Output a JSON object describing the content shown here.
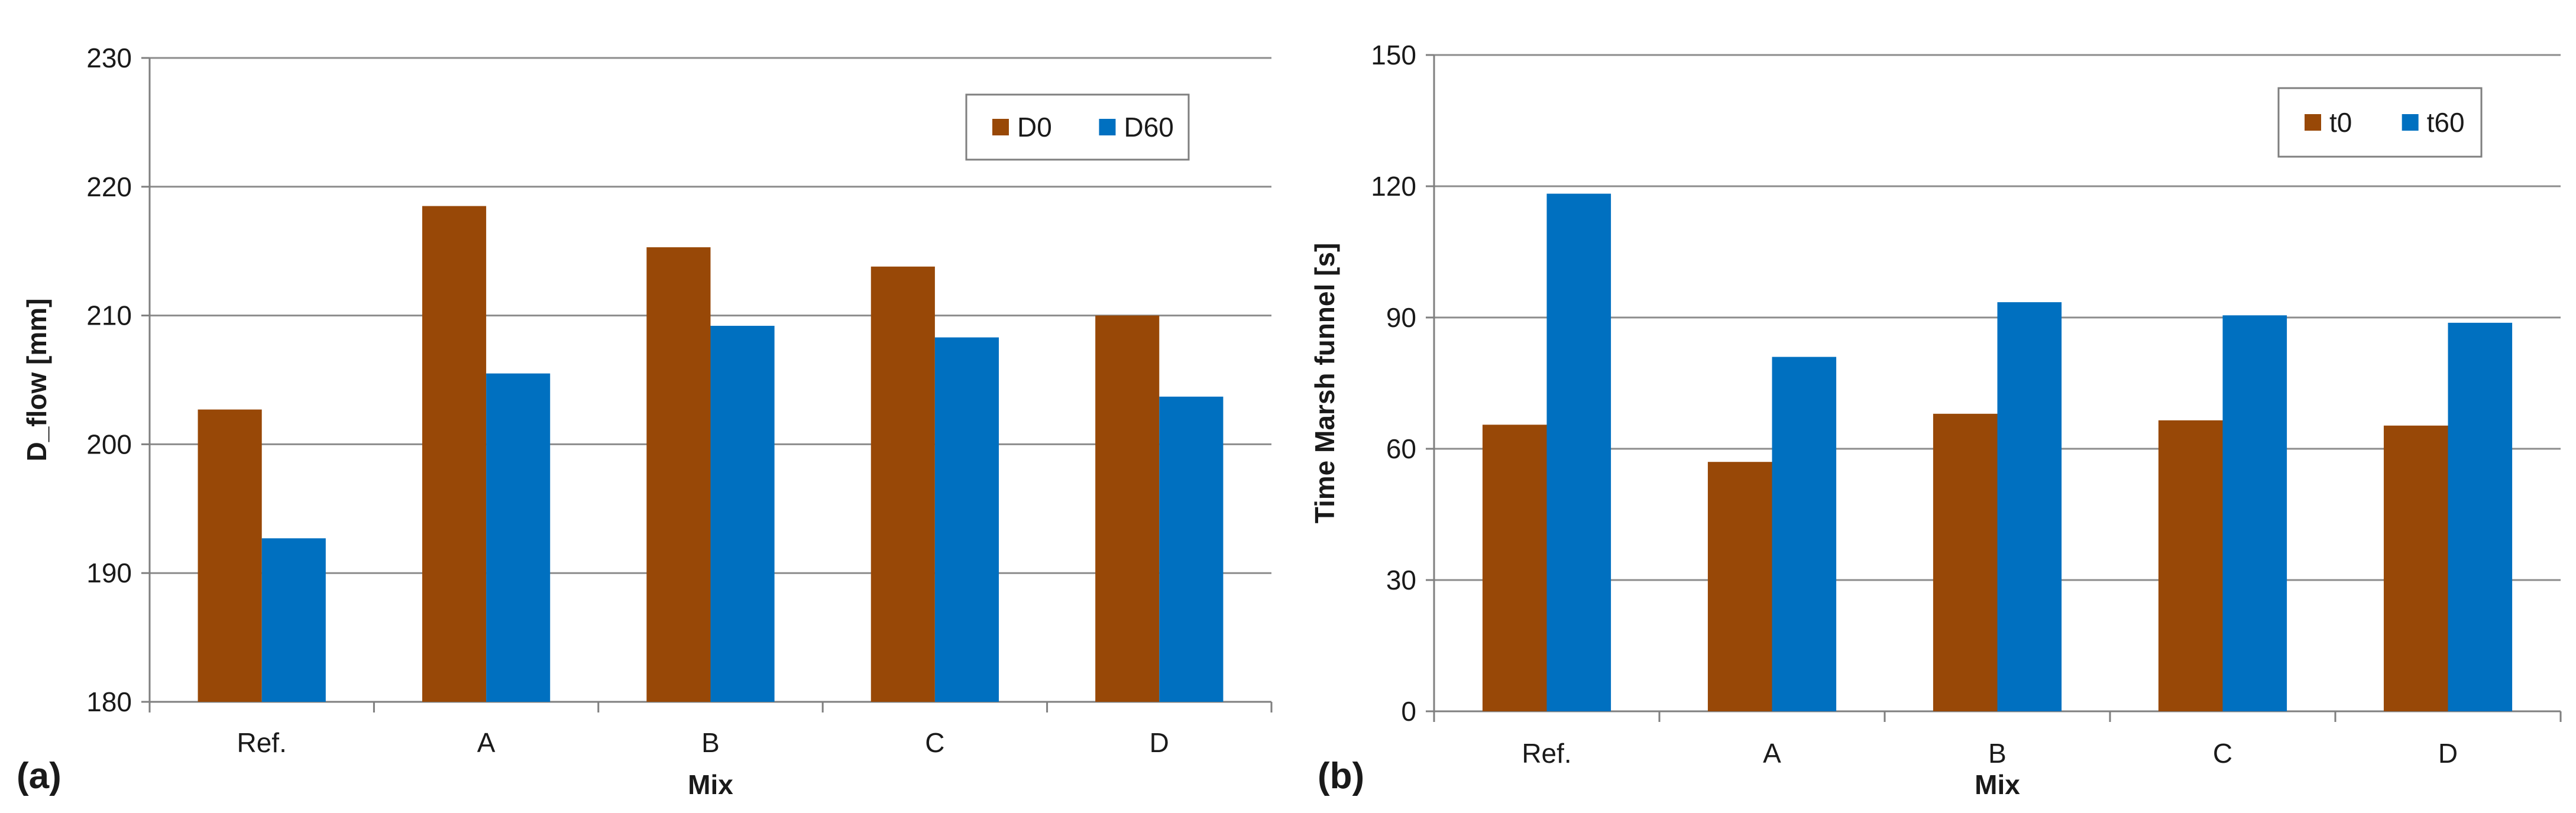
{
  "colors": {
    "series1": "#984807",
    "series2": "#0070C0",
    "grid": "#8c8c8c",
    "axis": "#7f7f7f"
  },
  "chart_data": [
    {
      "type": "bar",
      "panel_label": "(a)",
      "categories": [
        "Ref.",
        "A",
        "B",
        "C",
        "D"
      ],
      "series": [
        {
          "name": "D0",
          "values": [
            202.7,
            218.5,
            215.3,
            213.8,
            210.0
          ]
        },
        {
          "name": "D60",
          "values": [
            192.7,
            205.5,
            209.2,
            208.3,
            203.7
          ]
        }
      ],
      "xlabel": "Mix",
      "ylabel": "D_flow [mm]",
      "ylim": [
        180,
        230
      ],
      "yticks": [
        "180",
        "190",
        "200",
        "210",
        "220",
        "230"
      ],
      "grid": true,
      "legend_position": "top-right"
    },
    {
      "type": "bar",
      "panel_label": "(b)",
      "categories": [
        "Ref.",
        "A",
        "B",
        "C",
        "D"
      ],
      "series": [
        {
          "name": "t0",
          "values": [
            65.5,
            57,
            68,
            66.5,
            65.3
          ]
        },
        {
          "name": "t60",
          "values": [
            118.3,
            81,
            93.5,
            90.5,
            88.8
          ]
        }
      ],
      "xlabel": "Mix",
      "ylabel": "Time Marsh funnel [s]",
      "ylim": [
        0,
        150
      ],
      "yticks": [
        "0",
        "30",
        "60",
        "90",
        "120",
        "150"
      ],
      "grid": true,
      "legend_position": "top-right"
    }
  ]
}
